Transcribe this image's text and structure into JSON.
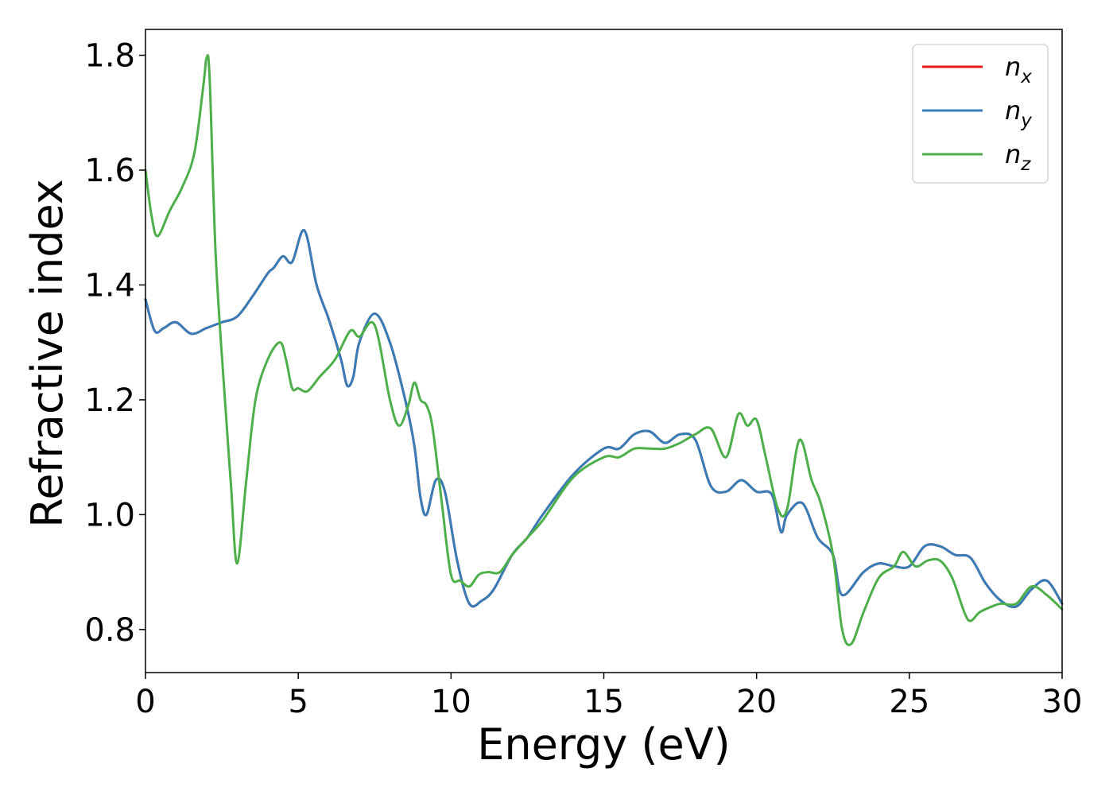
{
  "chart_data": {
    "type": "line",
    "title": "",
    "xlabel": "Energy (eV)",
    "ylabel": "Refractive index",
    "xlim": [
      0,
      30
    ],
    "ylim": [
      0.725,
      1.845
    ],
    "xticks": [
      0,
      5,
      10,
      15,
      20,
      25,
      30
    ],
    "xtick_labels": [
      "0",
      "5",
      "10",
      "15",
      "20",
      "25",
      "30"
    ],
    "yticks": [
      0.8,
      1.0,
      1.2,
      1.4,
      1.6,
      1.8
    ],
    "ytick_labels": [
      "0.8",
      "1.0",
      "1.2",
      "1.4",
      "1.6",
      "1.8"
    ],
    "grid": false,
    "legend_position": "top-right",
    "series": [
      {
        "name": "n",
        "subscript": "x",
        "color": "#e41a1c",
        "x": [
          0,
          0.3,
          0.6,
          1.0,
          1.5,
          2.0,
          2.5,
          3.0,
          3.5,
          4.0,
          4.2,
          4.5,
          4.8,
          5.2,
          5.6,
          6.0,
          6.4,
          6.6,
          6.8,
          7.0,
          7.5,
          8.0,
          8.5,
          8.8,
          9.0,
          9.2,
          9.5,
          9.8,
          10.2,
          10.6,
          11.0,
          11.4,
          12.0,
          12.5,
          13.0,
          14.0,
          15.0,
          15.5,
          16.0,
          16.5,
          17.0,
          17.5,
          18.0,
          18.5,
          19.0,
          19.5,
          20.0,
          20.5,
          20.8,
          21.0,
          21.5,
          22.0,
          22.5,
          22.8,
          23.5,
          24.0,
          24.5,
          25.0,
          25.5,
          26.0,
          26.5,
          27.0,
          27.5,
          28.0,
          28.5,
          29.0,
          29.5,
          30.0
        ],
        "y": [
          1.375,
          1.32,
          1.325,
          1.335,
          1.315,
          1.325,
          1.335,
          1.345,
          1.38,
          1.42,
          1.43,
          1.45,
          1.44,
          1.495,
          1.4,
          1.34,
          1.27,
          1.225,
          1.24,
          1.3,
          1.35,
          1.3,
          1.2,
          1.12,
          1.03,
          1.0,
          1.06,
          1.04,
          0.92,
          0.845,
          0.85,
          0.87,
          0.93,
          0.96,
          1.0,
          1.07,
          1.115,
          1.115,
          1.14,
          1.145,
          1.125,
          1.14,
          1.13,
          1.05,
          1.04,
          1.06,
          1.04,
          1.035,
          0.97,
          1.0,
          1.02,
          0.96,
          0.93,
          0.86,
          0.9,
          0.915,
          0.91,
          0.91,
          0.945,
          0.945,
          0.93,
          0.925,
          0.88,
          0.85,
          0.84,
          0.87,
          0.885,
          0.845
        ]
      },
      {
        "name": "n",
        "subscript": "y",
        "color": "#377eb8",
        "x": [
          0,
          0.3,
          0.6,
          1.0,
          1.5,
          2.0,
          2.5,
          3.0,
          3.5,
          4.0,
          4.2,
          4.5,
          4.8,
          5.2,
          5.6,
          6.0,
          6.4,
          6.6,
          6.8,
          7.0,
          7.5,
          8.0,
          8.5,
          8.8,
          9.0,
          9.2,
          9.5,
          9.8,
          10.2,
          10.6,
          11.0,
          11.4,
          12.0,
          12.5,
          13.0,
          14.0,
          15.0,
          15.5,
          16.0,
          16.5,
          17.0,
          17.5,
          18.0,
          18.5,
          19.0,
          19.5,
          20.0,
          20.5,
          20.8,
          21.0,
          21.5,
          22.0,
          22.5,
          22.8,
          23.5,
          24.0,
          24.5,
          25.0,
          25.5,
          26.0,
          26.5,
          27.0,
          27.5,
          28.0,
          28.5,
          29.0,
          29.5,
          30.0
        ],
        "y": [
          1.375,
          1.32,
          1.325,
          1.335,
          1.315,
          1.325,
          1.335,
          1.345,
          1.38,
          1.42,
          1.43,
          1.45,
          1.44,
          1.495,
          1.4,
          1.34,
          1.27,
          1.225,
          1.24,
          1.3,
          1.35,
          1.3,
          1.2,
          1.12,
          1.03,
          1.0,
          1.06,
          1.04,
          0.92,
          0.845,
          0.85,
          0.87,
          0.93,
          0.96,
          1.0,
          1.07,
          1.115,
          1.115,
          1.14,
          1.145,
          1.125,
          1.14,
          1.13,
          1.05,
          1.04,
          1.06,
          1.04,
          1.035,
          0.97,
          1.0,
          1.02,
          0.96,
          0.93,
          0.86,
          0.9,
          0.915,
          0.91,
          0.91,
          0.945,
          0.945,
          0.93,
          0.925,
          0.88,
          0.85,
          0.84,
          0.87,
          0.885,
          0.845
        ]
      },
      {
        "name": "n",
        "subscript": "z",
        "color": "#4daf4a",
        "x": [
          0,
          0.2,
          0.4,
          0.8,
          1.2,
          1.6,
          1.9,
          2.0,
          2.1,
          2.3,
          2.6,
          2.8,
          3.0,
          3.3,
          3.6,
          4.0,
          4.4,
          4.6,
          4.8,
          5.0,
          5.3,
          5.7,
          6.2,
          6.7,
          7.0,
          7.5,
          8.0,
          8.3,
          8.6,
          8.8,
          9.0,
          9.2,
          9.4,
          9.7,
          10.0,
          10.3,
          10.6,
          10.9,
          11.2,
          11.6,
          12.0,
          12.5,
          13.0,
          14.0,
          15.0,
          15.5,
          16.0,
          16.5,
          17.0,
          17.5,
          18.0,
          18.5,
          19.0,
          19.4,
          19.7,
          20.0,
          20.3,
          20.7,
          21.0,
          21.4,
          21.8,
          22.1,
          22.5,
          22.8,
          23.1,
          23.5,
          24.0,
          24.5,
          24.8,
          25.2,
          25.6,
          26.0,
          26.4,
          26.8,
          27.0,
          27.3,
          27.7,
          28.0,
          28.5,
          29.0,
          29.5,
          30.0
        ],
        "y": [
          1.6,
          1.52,
          1.485,
          1.53,
          1.57,
          1.63,
          1.75,
          1.795,
          1.76,
          1.45,
          1.2,
          1.05,
          0.915,
          1.06,
          1.2,
          1.27,
          1.3,
          1.27,
          1.22,
          1.22,
          1.215,
          1.24,
          1.27,
          1.32,
          1.31,
          1.33,
          1.2,
          1.155,
          1.19,
          1.23,
          1.2,
          1.19,
          1.15,
          1.02,
          0.895,
          0.885,
          0.875,
          0.895,
          0.9,
          0.9,
          0.93,
          0.96,
          0.99,
          1.065,
          1.1,
          1.1,
          1.115,
          1.115,
          1.115,
          1.125,
          1.14,
          1.15,
          1.1,
          1.175,
          1.155,
          1.165,
          1.1,
          1.01,
          1.01,
          1.13,
          1.06,
          1.02,
          0.93,
          0.8,
          0.775,
          0.83,
          0.89,
          0.91,
          0.935,
          0.91,
          0.92,
          0.92,
          0.89,
          0.83,
          0.815,
          0.83,
          0.84,
          0.845,
          0.845,
          0.875,
          0.86,
          0.835
        ]
      }
    ]
  }
}
